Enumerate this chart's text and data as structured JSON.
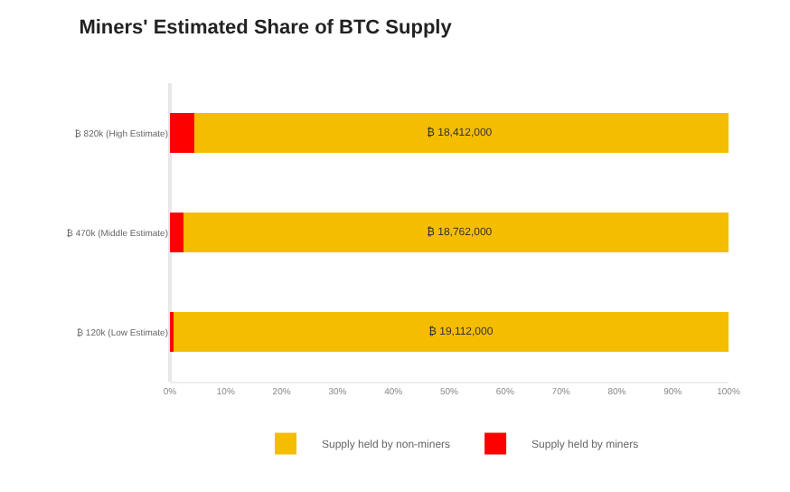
{
  "chart_data": {
    "type": "bar",
    "title": "Miners' Estimated Share of BTC Supply",
    "orientation": "horizontal",
    "stacked": true,
    "categories": [
      "₿ 820k (High Estimate)",
      "₿ 470k (Middle Estimate)",
      "₿ 120k (Low Estimate)"
    ],
    "series": [
      {
        "name": "Supply held by miners",
        "color": "#ff0000",
        "values": [
          4.3,
          2.4,
          0.6
        ]
      },
      {
        "name": "Supply held by non-miners",
        "color": "#f5bd00",
        "values": [
          95.7,
          97.6,
          99.4
        ]
      }
    ],
    "xlim": [
      0,
      100
    ],
    "xticks": [
      {
        "value": 0,
        "label": "0%"
      },
      {
        "value": 10,
        "label": "10%"
      },
      {
        "value": 20,
        "label": "20%"
      },
      {
        "value": 30,
        "label": "30%"
      },
      {
        "value": 40,
        "label": "40%"
      },
      {
        "value": 50,
        "label": "50%"
      },
      {
        "value": 60,
        "label": "60%"
      },
      {
        "value": 70,
        "label": "70%"
      },
      {
        "value": 80,
        "label": "80%"
      },
      {
        "value": 90,
        "label": "90%"
      },
      {
        "value": 100,
        "label": "100%"
      }
    ],
    "annotations": [
      "₿ 18,412,000",
      "₿ 18,762,000",
      "₿ 19,112,000"
    ],
    "legend": "bottom"
  }
}
